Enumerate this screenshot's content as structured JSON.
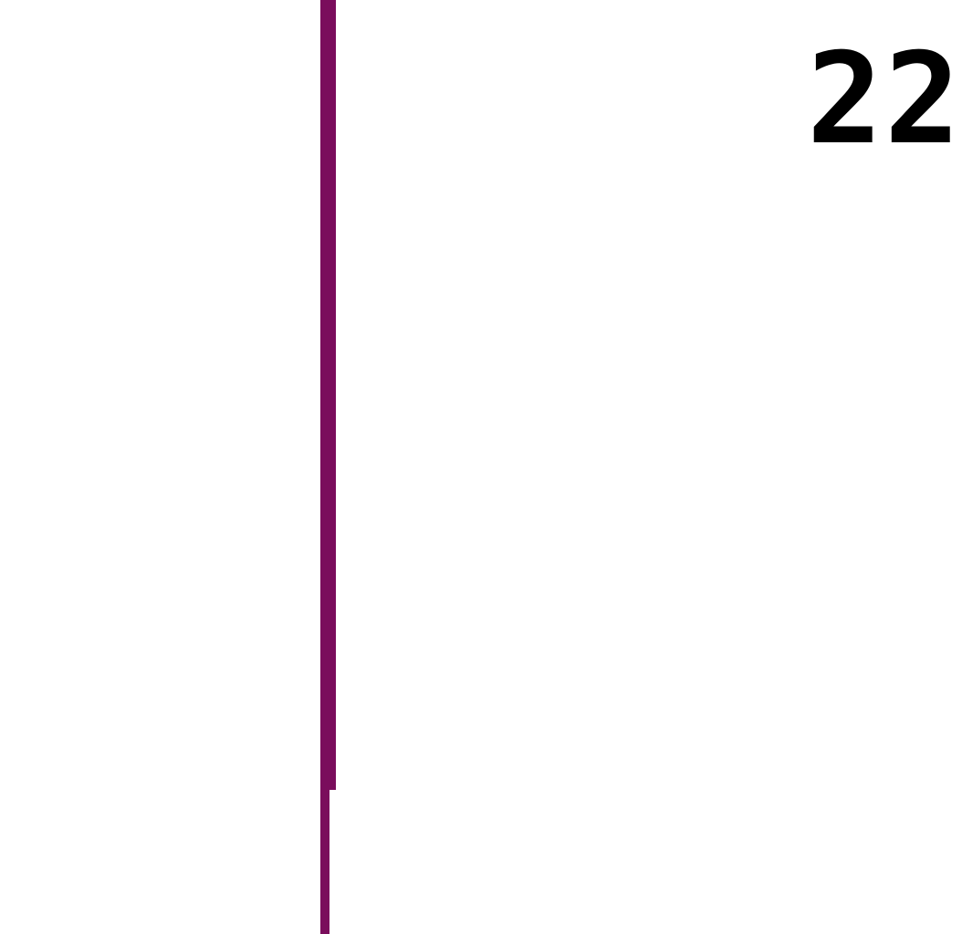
{
  "colors": {
    "background": "#ffffff",
    "line": "#7a0d5c",
    "text": "#000000"
  },
  "label": {
    "text": "22"
  }
}
